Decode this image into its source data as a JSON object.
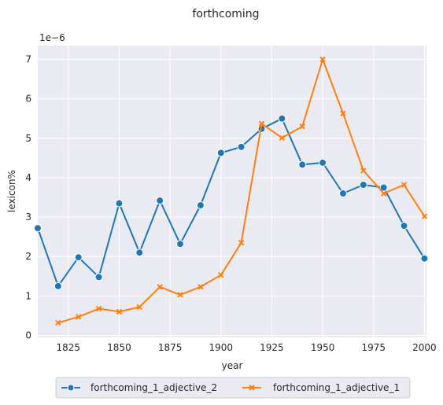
{
  "chart_data": {
    "type": "line",
    "title": "forthcoming",
    "xlabel": "year",
    "ylabel": "lexicon%",
    "y_scale_label": "1e−6",
    "xlim": [
      1810,
      2001
    ],
    "ylim": [
      -0.05,
      7.35
    ],
    "x_ticks": [
      1825,
      1850,
      1875,
      1900,
      1925,
      1950,
      1975,
      2000
    ],
    "y_ticks": [
      0,
      1,
      2,
      3,
      4,
      5,
      6,
      7
    ],
    "grid": true,
    "legend_position": "bottom-center",
    "series": [
      {
        "name": "forthcoming_1_adjective_2",
        "color": "#1f77b4",
        "marker": "circle",
        "x": [
          1810,
          1820,
          1830,
          1840,
          1850,
          1860,
          1870,
          1880,
          1890,
          1900,
          1910,
          1920,
          1930,
          1940,
          1950,
          1960,
          1970,
          1980,
          1990,
          2000
        ],
        "y": [
          2.72,
          1.25,
          1.98,
          1.48,
          3.35,
          2.1,
          3.42,
          2.32,
          3.3,
          4.63,
          4.78,
          5.24,
          5.5,
          4.33,
          4.38,
          3.6,
          3.82,
          3.75,
          2.78,
          1.95
        ]
      },
      {
        "name": "forthcoming_1_adjective_1",
        "color": "#ff7f0e",
        "marker": "x",
        "x": [
          1820,
          1830,
          1840,
          1850,
          1860,
          1870,
          1880,
          1890,
          1900,
          1910,
          1920,
          1930,
          1940,
          1950,
          1960,
          1970,
          1980,
          1990,
          2000
        ],
        "y": [
          0.32,
          0.47,
          0.68,
          0.6,
          0.72,
          1.23,
          1.03,
          1.23,
          1.53,
          2.35,
          5.37,
          5.01,
          5.3,
          7.0,
          5.63,
          4.18,
          3.6,
          3.82,
          3.02
        ]
      }
    ]
  }
}
